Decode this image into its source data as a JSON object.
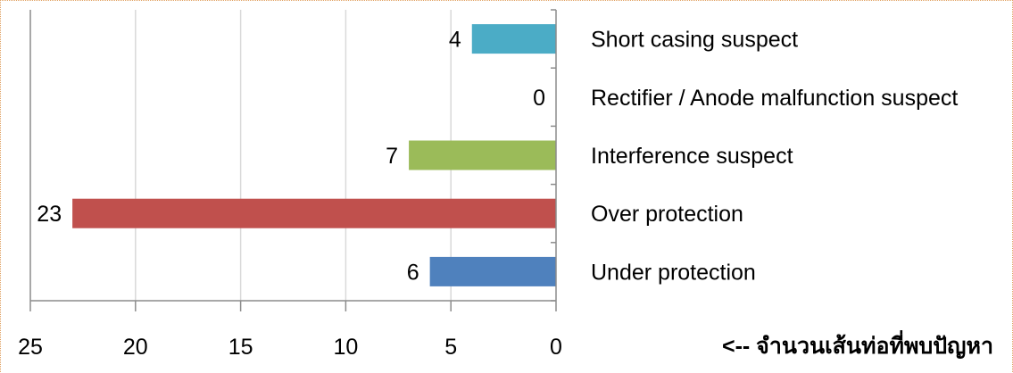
{
  "chart_data": {
    "type": "bar",
    "orientation": "horizontal-reversed",
    "categories": [
      "Short casing suspect",
      "Rectifier / Anode malfunction suspect",
      "Interference suspect",
      "Over protection",
      "Under protection"
    ],
    "values": [
      4,
      0,
      7,
      23,
      6
    ],
    "colors": [
      "#4bacc6",
      "#8064a2",
      "#9bbb59",
      "#c0504d",
      "#4f81bd"
    ],
    "xlim": [
      0,
      25
    ],
    "x_ticks": [
      "25",
      "20",
      "15",
      "10",
      "5",
      "0"
    ],
    "xlabel": "<-- จำนวนเส้นท่อที่พบปัญหา",
    "grid": true,
    "legend": "none"
  }
}
